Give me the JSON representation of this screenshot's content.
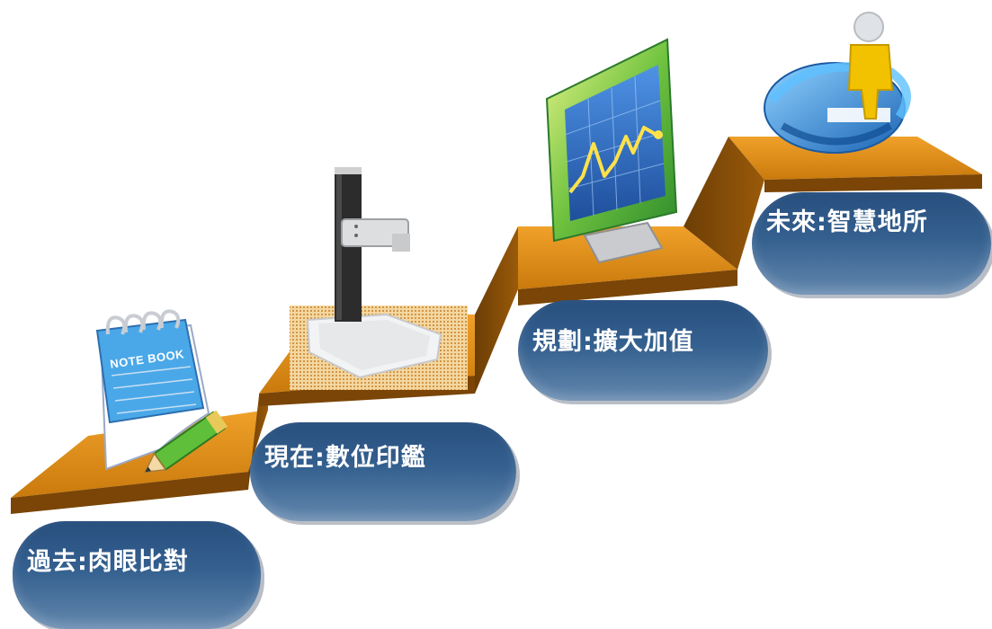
{
  "stages": [
    {
      "label": "過去:肉眼比對",
      "illustration": "notebook-pencil-icon"
    },
    {
      "label": "現在:數位印鑑",
      "illustration": "document-scanner-icon"
    },
    {
      "label": "規劃:擴大加值",
      "illustration": "monitor-chart-icon"
    },
    {
      "label": "未來:智慧地所",
      "illustration": "person-globe-icon"
    }
  ],
  "notebook": {
    "cover_text": "NOTE BOOK"
  },
  "colors": {
    "step_top": "#d98a10",
    "step_side": "#8a4f06",
    "pill_dark": "#284f7e",
    "pill_light": "#6387ad",
    "monitor_frame": "#3aa23a",
    "screen_blue": "#3f7fd0",
    "chart_line": "#ffe24a",
    "person_yellow": "#f2c200",
    "globe_blue": "#2a82d6"
  }
}
